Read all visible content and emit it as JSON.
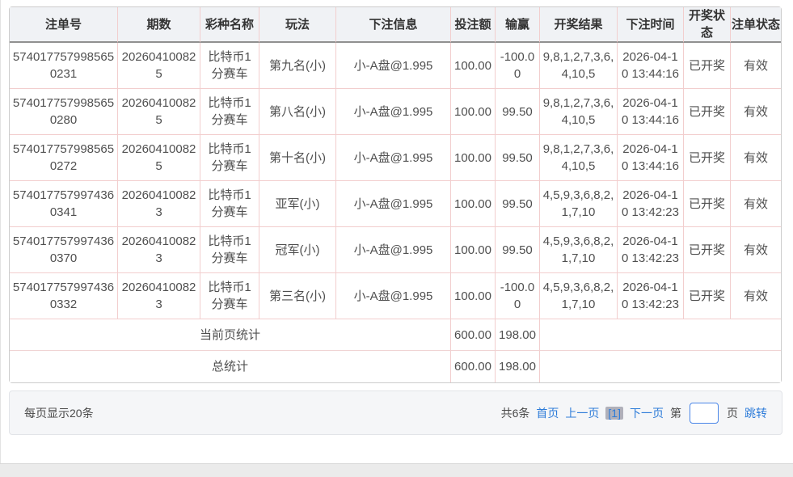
{
  "table": {
    "columns": [
      {
        "key": "order_no",
        "label": "注单号",
        "width": 134
      },
      {
        "key": "period",
        "label": "期数",
        "width": 102
      },
      {
        "key": "lottery_name",
        "label": "彩种名称",
        "width": 73
      },
      {
        "key": "play_type",
        "label": "玩法",
        "width": 95
      },
      {
        "key": "bet_info",
        "label": "下注信息",
        "width": 142
      },
      {
        "key": "bet_amount",
        "label": "投注额",
        "width": 55
      },
      {
        "key": "win_loss",
        "label": "输赢",
        "width": 55
      },
      {
        "key": "draw_result",
        "label": "开奖结果",
        "width": 96
      },
      {
        "key": "bet_time",
        "label": "下注时间",
        "width": 82
      },
      {
        "key": "draw_status",
        "label": "开奖状态",
        "width": 58
      },
      {
        "key": "order_status",
        "label": "注单状态",
        "width": 62
      }
    ],
    "rows": [
      [
        "5740177579985650231",
        "202604100825",
        "比特币1分赛车",
        "第九名(小)",
        "小-A盘@1.995",
        "100.00",
        "-100.00",
        "9,8,1,2,7,3,6,4,10,5",
        "2026-04-10 13:44:16",
        "已开奖",
        "有效"
      ],
      [
        "5740177579985650280",
        "202604100825",
        "比特币1分赛车",
        "第八名(小)",
        "小-A盘@1.995",
        "100.00",
        "99.50",
        "9,8,1,2,7,3,6,4,10,5",
        "2026-04-10 13:44:16",
        "已开奖",
        "有效"
      ],
      [
        "5740177579985650272",
        "202604100825",
        "比特币1分赛车",
        "第十名(小)",
        "小-A盘@1.995",
        "100.00",
        "99.50",
        "9,8,1,2,7,3,6,4,10,5",
        "2026-04-10 13:44:16",
        "已开奖",
        "有效"
      ],
      [
        "5740177579974360341",
        "202604100823",
        "比特币1分赛车",
        "亚军(小)",
        "小-A盘@1.995",
        "100.00",
        "99.50",
        "4,5,9,3,6,8,2,1,7,10",
        "2026-04-10 13:42:23",
        "已开奖",
        "有效"
      ],
      [
        "5740177579974360370",
        "202604100823",
        "比特币1分赛车",
        "冠军(小)",
        "小-A盘@1.995",
        "100.00",
        "99.50",
        "4,5,9,3,6,8,2,1,7,10",
        "2026-04-10 13:42:23",
        "已开奖",
        "有效"
      ],
      [
        "5740177579974360332",
        "202604100823",
        "比特币1分赛车",
        "第三名(小)",
        "小-A盘@1.995",
        "100.00",
        "-100.00",
        "4,5,9,3,6,8,2,1,7,10",
        "2026-04-10 13:42:23",
        "已开奖",
        "有效"
      ]
    ],
    "summary_rows": [
      {
        "label": "当前页统计",
        "bet_amount": "600.00",
        "win_loss": "198.00"
      },
      {
        "label": "总统计",
        "bet_amount": "600.00",
        "win_loss": "198.00"
      }
    ]
  },
  "footer": {
    "per_page_text": "每页显示20条",
    "total_text": "共6条",
    "first_label": "首页",
    "prev_label": "上一页",
    "current_page": "[1]",
    "next_label": "下一页",
    "page_prefix": "第",
    "page_suffix": "页",
    "jump_label": "跳转",
    "page_input_value": ""
  },
  "colors": {
    "link_blue": "#2e7cd9",
    "border_pink": "#f2cece",
    "header_bg": "#f0f2f5",
    "footer_bg": "#f5f6f8",
    "current_page_bg": "#b0b0ba"
  }
}
